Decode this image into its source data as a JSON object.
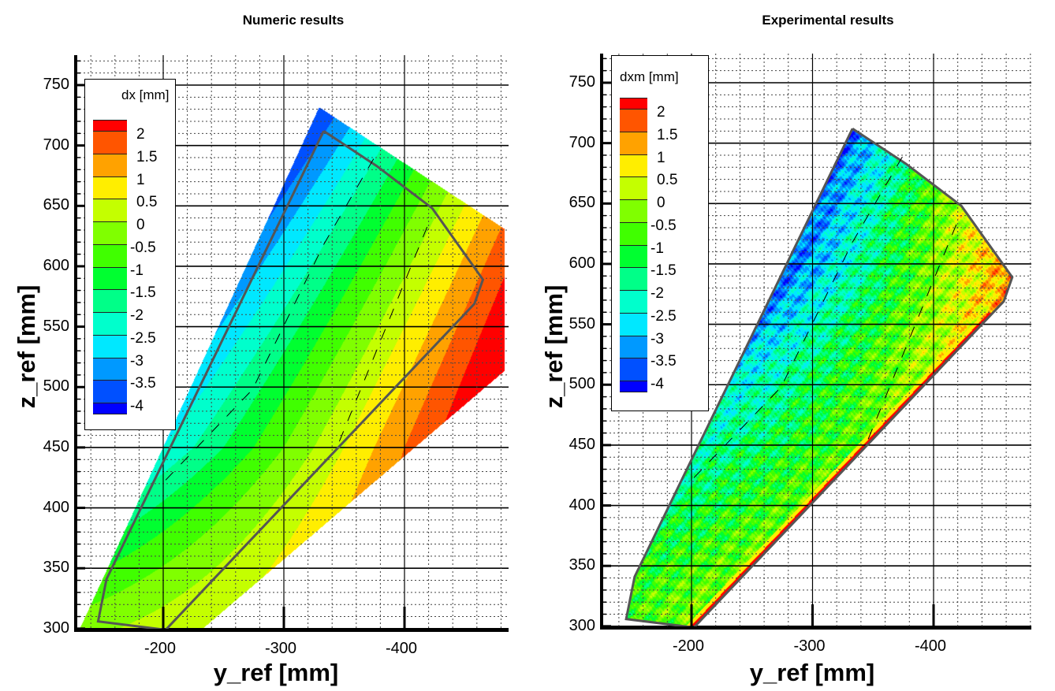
{
  "chart_data": [
    {
      "type": "heatmap",
      "subtype": "filled-contour",
      "title": "Numeric results",
      "xlabel": "y_ref [mm]",
      "ylabel": "z_ref [mm]",
      "xlim": [
        -127,
        -486
      ],
      "ylim": [
        297,
        775
      ],
      "xticks": [
        -200,
        -300,
        -400
      ],
      "yticks": [
        300,
        350,
        400,
        450,
        500,
        550,
        600,
        650,
        700,
        750
      ],
      "grid": true,
      "legend": {
        "title": "dx [mm]",
        "placement": "top-left",
        "levels": [
          "2",
          "1.5",
          "1",
          "0.5",
          "0",
          "-0.5",
          "-1",
          "-1.5",
          "-2",
          "-2.5",
          "-3",
          "-3.5",
          "-4"
        ]
      },
      "colors": [
        "#ff0000",
        "#ff5500",
        "#ffa200",
        "#ffee00",
        "#c4ff00",
        "#80ff00",
        "#40ff00",
        "#00ff30",
        "#00ff88",
        "#00ffcc",
        "#00e8ff",
        "#0099ff",
        "#0050ff",
        "#0000ff"
      ],
      "field_domain": [
        [
          -329,
          732
        ],
        [
          -483,
          631
        ],
        [
          -483,
          514
        ],
        [
          -395,
          439
        ],
        [
          -231,
          299
        ],
        [
          -130,
          299
        ]
      ],
      "outline": [
        [
          -333,
          712
        ],
        [
          -377,
          683
        ],
        [
          -423,
          648
        ],
        [
          -465,
          589
        ],
        [
          -458,
          569
        ],
        [
          -202,
          299
        ],
        [
          -146,
          306
        ],
        [
          -153,
          341
        ],
        [
          -333,
          712
        ]
      ],
      "dashed_lines": [
        [
          [
            -202,
            423
          ],
          [
            -274,
            498
          ],
          [
            -333,
            618
          ],
          [
            -375,
            690
          ]
        ],
        [
          [
            -346,
            455
          ],
          [
            -378,
            533
          ],
          [
            -421,
            638
          ]
        ]
      ]
    },
    {
      "type": "heatmap",
      "subtype": "filled-contour",
      "title": "Experimental results",
      "xlabel": "y_ref [mm]",
      "ylabel": "z_ref [mm]",
      "xlim": [
        -127,
        -482
      ],
      "ylim": [
        297,
        775
      ],
      "xticks": [
        -200,
        -300,
        -400
      ],
      "yticks": [
        300,
        350,
        400,
        450,
        500,
        550,
        600,
        650,
        700,
        750
      ],
      "grid": true,
      "legend": {
        "title": "dxm [mm]",
        "placement": "top-left",
        "levels": [
          "2",
          "1.5",
          "1",
          "0.5",
          "0",
          "-0.5",
          "-1",
          "-1.5",
          "-2",
          "-2.5",
          "-3",
          "-3.5",
          "-4"
        ]
      },
      "colors": [
        "#ff0000",
        "#ff5500",
        "#ffa200",
        "#ffee00",
        "#c4ff00",
        "#80ff00",
        "#40ff00",
        "#00ff30",
        "#00ff88",
        "#00ffcc",
        "#00e8ff",
        "#0099ff",
        "#0050ff",
        "#0000ff"
      ],
      "field_domain": [
        [
          -333,
          712
        ],
        [
          -377,
          683
        ],
        [
          -423,
          648
        ],
        [
          -465,
          589
        ],
        [
          -458,
          569
        ],
        [
          -202,
          299
        ],
        [
          -146,
          306
        ],
        [
          -153,
          341
        ]
      ],
      "outline": [
        [
          -333,
          712
        ],
        [
          -377,
          683
        ],
        [
          -423,
          648
        ],
        [
          -465,
          589
        ],
        [
          -458,
          569
        ],
        [
          -202,
          299
        ],
        [
          -146,
          306
        ],
        [
          -153,
          341
        ],
        [
          -333,
          712
        ]
      ],
      "dashed_lines": [
        [
          [
            -202,
            423
          ],
          [
            -274,
            498
          ],
          [
            -333,
            618
          ],
          [
            -375,
            690
          ]
        ],
        [
          [
            -346,
            455
          ],
          [
            -378,
            533
          ],
          [
            -421,
            638
          ]
        ]
      ]
    }
  ]
}
